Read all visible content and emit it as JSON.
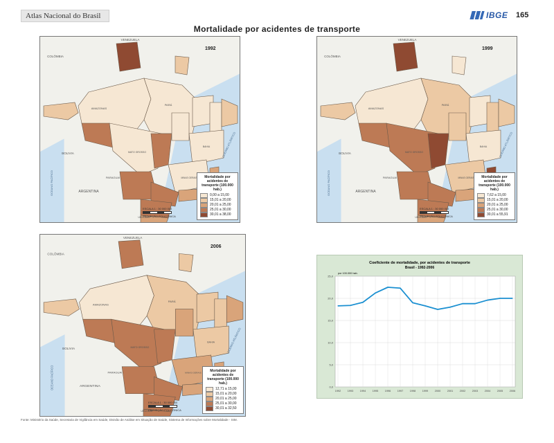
{
  "header": {
    "atlas_title": "Atlas Nacional do Brasil",
    "logo": "IBGE",
    "page_number": "165"
  },
  "page_title": "Mortalidade por acidentes de transporte",
  "maps": [
    {
      "year": "1992",
      "legend_title": "Mortalidade por acidentes de transporte (100.000 hab.)",
      "classes": [
        "0,00 a 15,00",
        "15,01 a 20,00",
        "20,01 a 25,00",
        "25,01 a 30,00",
        "30,01 a 38,00"
      ],
      "scale_label": "ESCALA 1 : 30 000 000",
      "projection": "PROJEÇÃO POLICÔNICA"
    },
    {
      "year": "1999",
      "legend_title": "Mortalidade por acidentes de transporte (100.000 hab.)",
      "classes": [
        "7,62 a 15,00",
        "15,01 a 20,00",
        "20,01 a 25,00",
        "25,01 a 30,00",
        "30,01 a 55,91"
      ],
      "scale_label": "ESCALA 1 : 30 000 000",
      "projection": "PROJEÇÃO POLICÔNICA"
    },
    {
      "year": "2006",
      "legend_title": "Mortalidade por acidentes de transporte (100.000 hab.)",
      "classes": [
        "12,71 a 15,00",
        "15,01 a 20,00",
        "20,01 a 25,00",
        "25,01 a 30,00",
        "30,01 a 32,50"
      ],
      "scale_label": "ESCALA 1 : 30 000 000",
      "projection": "PROJEÇÃO POLICÔNICA"
    }
  ],
  "class_colors": [
    "#f6e7d3",
    "#ecc9a4",
    "#d9a47a",
    "#bd7a55",
    "#8f4a32"
  ],
  "map_labels": {
    "countries": [
      "VENEZUELA",
      "COLÔMBIA",
      "PERU",
      "BOLIVIA",
      "PARAGUAI",
      "ARGENTINA",
      "URUGUAY",
      "GUYANA",
      "SURINAME"
    ],
    "oceans": [
      "OCEANO PACÍFICO",
      "OCEANO ATLÂNTICO"
    ],
    "states": [
      "AMAZONAS",
      "PARÁ",
      "ACRE",
      "RONDÔNIA",
      "MATO GROSSO",
      "MATO GROSSO DO SUL",
      "GOIÁS",
      "MINAS GERAIS",
      "BAHIA",
      "TOCANTINS",
      "MARANHÃO",
      "PIAUÍ",
      "SÃO PAULO",
      "PARANÁ",
      "SANTA CATARINA",
      "RIO GRANDE DO SUL",
      "ESPÍRITO SANTO",
      "RIO DE JANEIRO"
    ]
  },
  "chart": {
    "title": "Coeficiente de mortalidade, por acidentes de transporte",
    "subtitle": "Brasil - 1992-2006",
    "unit": "por 100.000 hab.",
    "line_color": "#1a8fd1",
    "chart_data": {
      "type": "line",
      "x": [
        "1992",
        "1993",
        "1994",
        "1995",
        "1996",
        "1997",
        "1998",
        "1999",
        "2000",
        "2001",
        "2002",
        "2003",
        "2004",
        "2005",
        "2006"
      ],
      "series": [
        {
          "values": [
            18.3,
            18.4,
            19.1,
            21.2,
            22.5,
            22.3,
            19.0,
            18.3,
            17.5,
            18.0,
            18.8,
            18.8,
            19.6,
            20.0,
            20.0
          ]
        }
      ],
      "ylim": [
        0,
        25
      ],
      "yticks": [
        "0,0",
        "5,0",
        "10,0",
        "15,0",
        "20,0",
        "25,0"
      ],
      "grid": true
    }
  },
  "footer": "Fonte: Ministério da Saúde, Secretaria de Vigilância em Saúde, Divisão de Análise em Situação de Saúde, Sistema de Informações sobre Mortalidade - SIM."
}
